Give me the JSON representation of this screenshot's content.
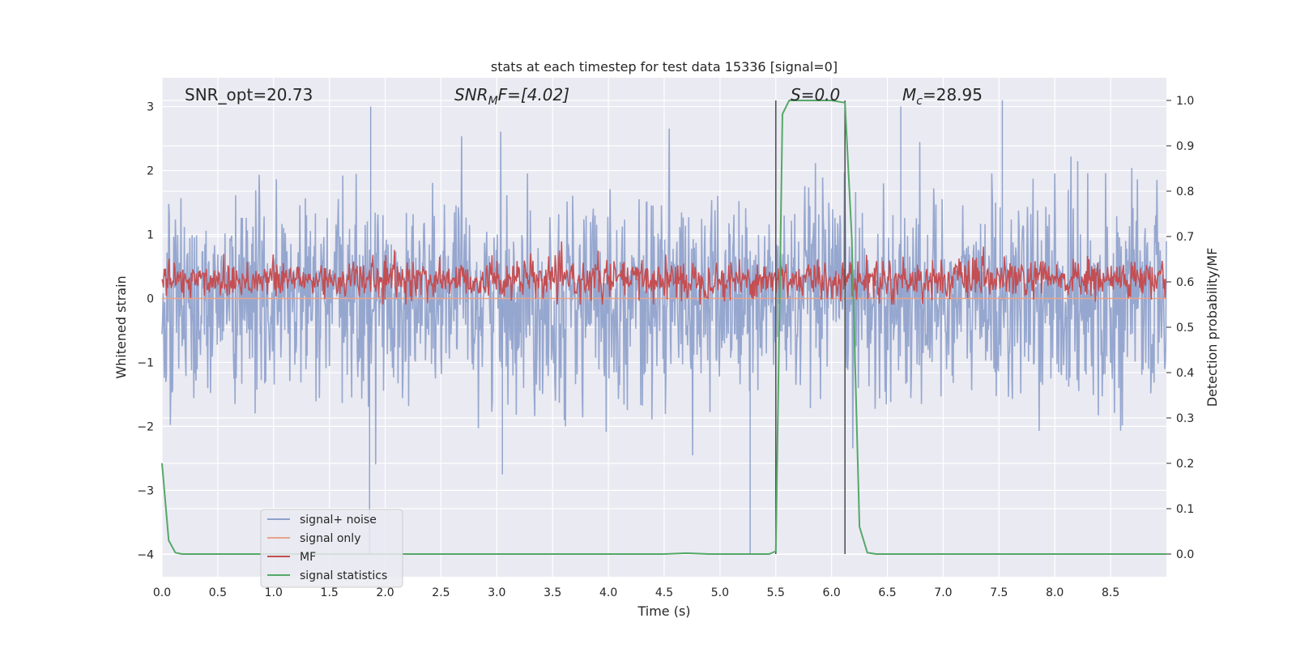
{
  "chart_data": {
    "type": "line",
    "title": "stats at each timestep for test data 15336 [signal=0]",
    "xlabel": "Time (s)",
    "ylabel": "Whitened strain",
    "ylabel_right": "Detection probability/MF",
    "xlim": [
      0.0,
      9.0
    ],
    "ylim": [
      -4.35,
      3.45
    ],
    "ylim_right": [
      -0.05,
      1.05
    ],
    "x_ticks": [
      "0.0",
      "0.5",
      "1.0",
      "1.5",
      "2.0",
      "2.5",
      "3.0",
      "3.5",
      "4.0",
      "4.5",
      "5.0",
      "5.5",
      "6.0",
      "6.5",
      "7.0",
      "7.5",
      "8.0",
      "8.5"
    ],
    "y_ticks": [
      "3",
      "2",
      "1",
      "0",
      "−1",
      "−2",
      "−3",
      "−4"
    ],
    "y_ticks_right": [
      "1.0",
      "0.9",
      "0.8",
      "0.7",
      "0.6",
      "0.5",
      "0.4",
      "0.3",
      "0.2",
      "0.1",
      "0.0"
    ],
    "grid": true,
    "legend_position": "lower-left",
    "annotations": {
      "snr_opt": "SNR_opt=20.73",
      "snr_mf_main": "SNR",
      "snr_mf_sub": "M",
      "snr_mf_rest": "F=[4.02]",
      "s_value": "S=0.0",
      "mc_main": "M",
      "mc_sub": "c",
      "mc_rest": "=28.95"
    },
    "event_markers": [
      5.5,
      6.12
    ],
    "series": [
      {
        "name": "signal+ noise",
        "color": "#8da0cb",
        "axis": "left",
        "description_values": {
          "typical_range": [
            -1.9,
            1.8
          ],
          "max": 3.1,
          "min": -4.0
        }
      },
      {
        "name": "signal only",
        "color": "#e8a48b",
        "axis": "left",
        "values_x": [
          0.0,
          9.0
        ],
        "values_y": [
          0.0,
          0.0
        ]
      },
      {
        "name": "MF",
        "color": "#c44e52",
        "axis": "right",
        "description_values": {
          "typical_range": [
            0.56,
            0.66
          ],
          "max": 0.7,
          "min": 0.55
        }
      },
      {
        "name": "signal statistics",
        "color": "#55a868",
        "axis": "right",
        "x": [
          0.0,
          0.06,
          0.12,
          0.18,
          0.3,
          1.0,
          2.0,
          3.0,
          4.0,
          4.5,
          4.7,
          4.9,
          5.0,
          5.44,
          5.5,
          5.56,
          5.62,
          5.7,
          6.0,
          6.12,
          6.18,
          6.25,
          6.32,
          6.4,
          6.6,
          7.0,
          8.0,
          9.0
        ],
        "y": [
          0.2,
          0.03,
          0.003,
          0.0,
          0.0,
          0.0,
          0.0,
          0.0,
          0.0,
          0.0,
          0.002,
          0.0,
          0.0,
          0.0,
          0.006,
          0.97,
          1.0,
          1.0,
          1.0,
          0.995,
          0.7,
          0.06,
          0.003,
          0.0,
          0.0,
          0.0,
          0.0,
          0.0
        ]
      }
    ]
  }
}
